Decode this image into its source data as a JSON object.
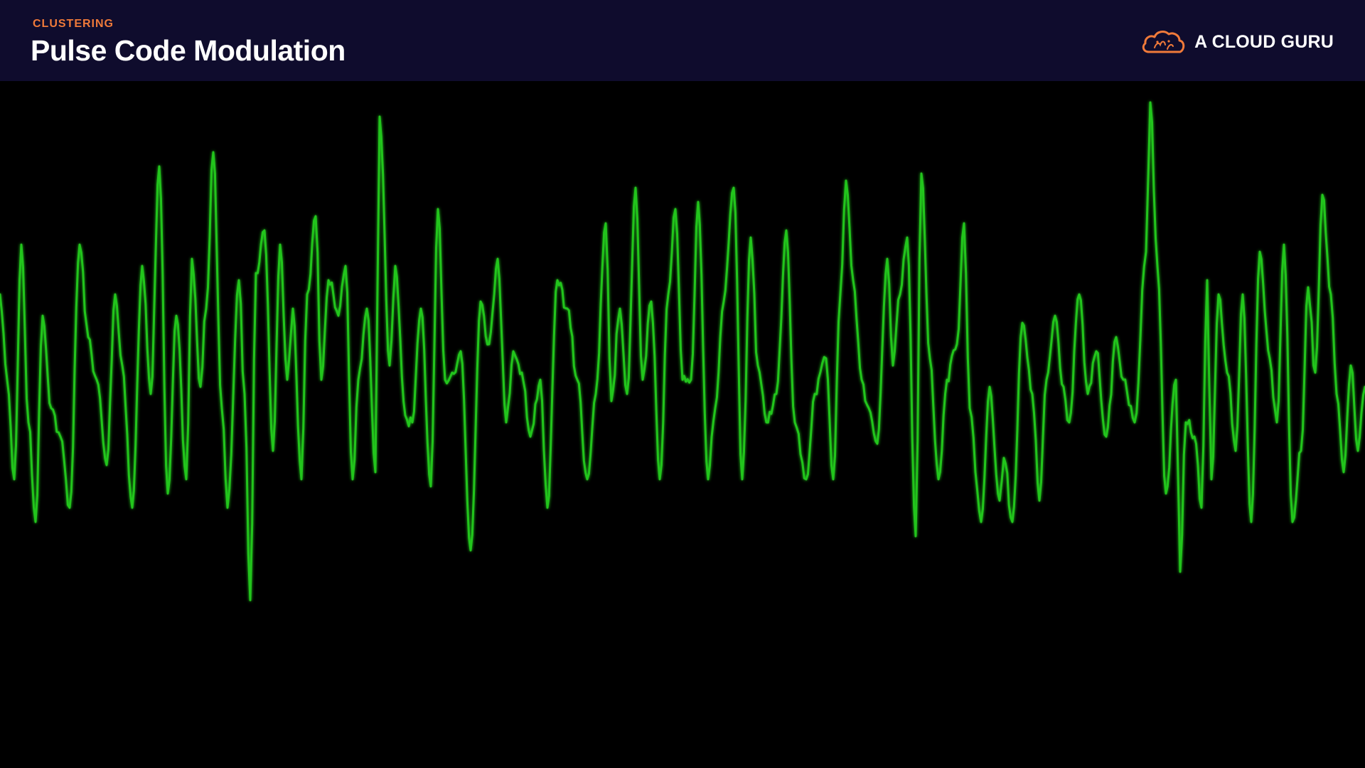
{
  "header": {
    "section_label": "CLUSTERING",
    "title": "Pulse Code Modulation"
  },
  "brand": {
    "name": "A CLOUD GURU",
    "logo_icon": "cloud-logo-icon",
    "logo_color": "#f07a3a"
  },
  "colors": {
    "header_background": "#0f0c2d",
    "section_label": "#f07a3a",
    "title_text": "#ffffff",
    "waveform_background": "#000000",
    "waveform_line": "#22c51e"
  }
}
